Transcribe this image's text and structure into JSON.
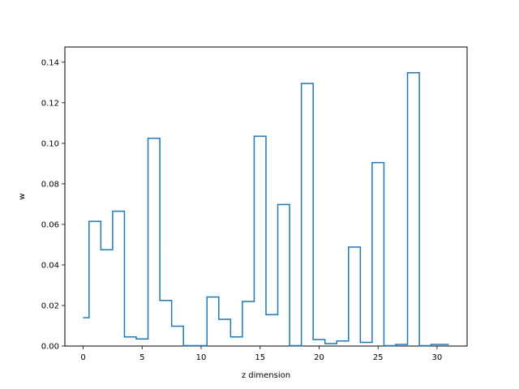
{
  "chart_data": {
    "type": "step",
    "title": "",
    "xlabel": "z dimension",
    "ylabel": "w",
    "xlim": [
      -1.55,
      32.55
    ],
    "ylim": [
      0,
      0.1475
    ],
    "x_ticks": [
      0,
      5,
      10,
      15,
      20,
      25,
      30
    ],
    "y_ticks": [
      0.0,
      0.02,
      0.04,
      0.06,
      0.08,
      0.1,
      0.12,
      0.14
    ],
    "grid": false,
    "legend": "none",
    "line_color": "#1f77b4",
    "x": [
      0,
      1,
      2,
      3,
      4,
      5,
      6,
      7,
      8,
      9,
      10,
      11,
      12,
      13,
      14,
      15,
      16,
      17,
      18,
      19,
      20,
      21,
      22,
      23,
      24,
      25,
      26,
      27,
      28,
      29,
      30,
      31
    ],
    "values": [
      0.014,
      0.0615,
      0.0475,
      0.0665,
      0.0045,
      0.0035,
      0.1025,
      0.0225,
      0.0098,
      0.0002,
      0.0002,
      0.0242,
      0.0132,
      0.0045,
      0.022,
      0.1035,
      0.0155,
      0.0698,
      0.0002,
      0.1295,
      0.0032,
      0.0012,
      0.0025,
      0.0488,
      0.0018,
      0.0905,
      0.0002,
      0.0008,
      0.1348,
      0.0002,
      0.0008,
      0.0008
    ]
  }
}
